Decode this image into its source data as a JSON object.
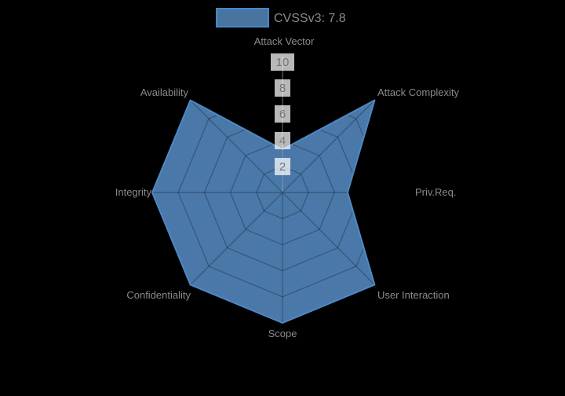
{
  "legend": {
    "label": "CVSSv3: 7.8",
    "swatch_fill": "#4a74a0",
    "swatch_border": "#4387c7"
  },
  "chart_data": {
    "type": "radar",
    "categories": [
      "Attack Vector",
      "Attack Complexity",
      "Priv.Req.",
      "User Interaction",
      "Scope",
      "Confidentiality",
      "Integrity",
      "Availability"
    ],
    "series": [
      {
        "name": "CVSSv3: 7.8",
        "values": [
          3.3,
          10,
          5,
          10,
          10,
          10,
          10,
          10
        ]
      }
    ],
    "radial_ticks": [
      2,
      4,
      6,
      8,
      10
    ],
    "radial_range": [
      0,
      10
    ],
    "grid": "spider-web",
    "legend_position": "top-center",
    "fill_color": "#4a78a8",
    "line_color": "#4d89c4",
    "grid_line_color": "rgba(0,0,0,0.28)",
    "axis_line_color": "rgba(210,210,210,0.55)",
    "label_color": "#8a8a8a",
    "tick_label_color": "#757575",
    "tick_box_color": "rgba(255,255,255,0.72)",
    "background": "#000000"
  }
}
